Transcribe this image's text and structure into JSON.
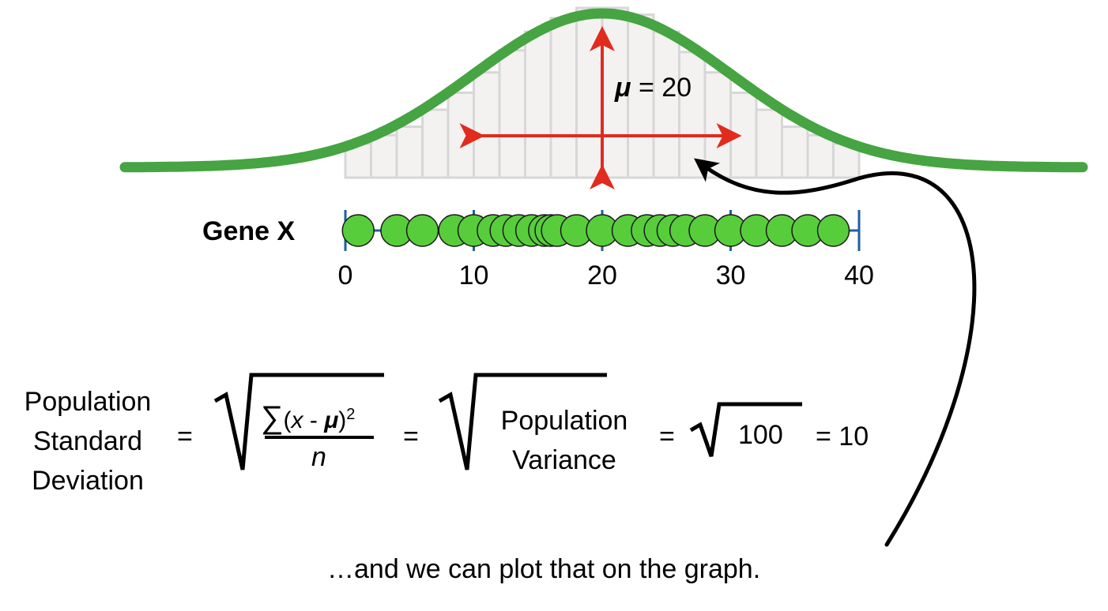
{
  "gene_label": "Gene X",
  "axis": {
    "min": 0,
    "max": 40,
    "ticks": [
      "0",
      "10",
      "20",
      "30",
      "40"
    ]
  },
  "histogram_counts": [
    0.2,
    0.25,
    0.3,
    0.4,
    0.5,
    0.62,
    0.75,
    0.86,
    0.94,
    1.0,
    1.0,
    0.96,
    0.86,
    0.74,
    0.62,
    0.5,
    0.4,
    0.3,
    0.25,
    0.2
  ],
  "points": [
    1,
    4,
    6,
    8.5,
    10,
    11.5,
    12.5,
    13.5,
    14.5,
    15.5,
    16,
    16.5,
    18,
    20,
    22,
    23.5,
    24.5,
    25.5,
    26.5,
    28,
    30,
    32,
    34,
    36,
    38
  ],
  "mu": {
    "symbol": "μ",
    "value_text": "= 20",
    "value": 20
  },
  "sd": {
    "value": 10
  },
  "formula": {
    "lhs": [
      "Population",
      "Standard",
      "Deviation"
    ],
    "eq1": "=",
    "num_sum": "∑",
    "num_open": "(",
    "num_x": "x",
    "num_minus": " - ",
    "num_mu": "μ",
    "num_close": ")",
    "num_exp": "2",
    "den": "n",
    "eq2": "=",
    "var_line1": "Population",
    "var_line2": "Variance",
    "eq3": "=",
    "root_value": "100",
    "eq4_text": "= 10"
  },
  "caption": "…and we can plot that on the graph.",
  "colors": {
    "curve": "#46a442",
    "dot_fill": "#58cd3c",
    "axis_line": "#1f5fa5",
    "arrow": "#e12b1e",
    "hist_fill": "#f4f1f1",
    "hist_stroke": "#d7d7d7"
  }
}
